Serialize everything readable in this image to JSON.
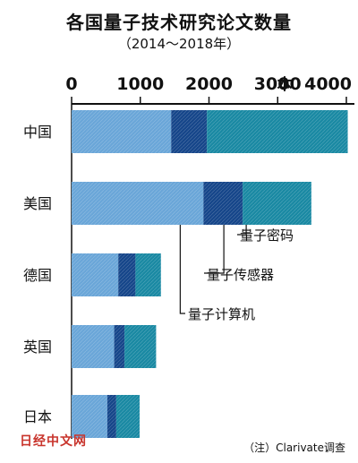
{
  "title": "各国量子技术研究论文数量",
  "subtitle": "（2014～2018年）",
  "source": "（注）Clarivate调查",
  "watermark": "日经中文网",
  "colors": {
    "computer": "#6aa6d8",
    "sensor": "#16468a",
    "crypto": "#1a89a3"
  },
  "chart_data": {
    "type": "bar",
    "orientation": "horizontal",
    "stacked": true,
    "categories": [
      "中国",
      "美国",
      "德国",
      "英国",
      "日本"
    ],
    "series": [
      {
        "name": "量子计算机",
        "values": [
          1450,
          1920,
          680,
          620,
          520
        ]
      },
      {
        "name": "量子传感器",
        "values": [
          520,
          570,
          250,
          150,
          130
        ]
      },
      {
        "name": "量子密码",
        "values": [
          2050,
          1000,
          370,
          460,
          340
        ]
      }
    ],
    "xlim": [
      0,
      4000
    ],
    "xticks": [
      "0",
      "1000",
      "2000",
      "3000",
      "4000"
    ],
    "unit": "本",
    "grid": false
  }
}
